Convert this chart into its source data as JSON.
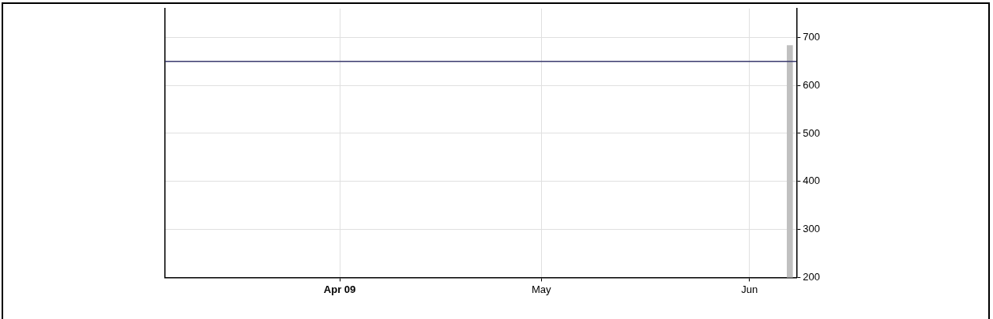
{
  "chart_data": {
    "type": "line",
    "xlim": [
      "2009-03-06",
      "2009-06-08"
    ],
    "xticks": [
      {
        "value": "2009-04-01",
        "label": "Apr 09"
      },
      {
        "value": "2009-05-01",
        "label": "May"
      },
      {
        "value": "2009-06-01",
        "label": "Jun"
      }
    ],
    "ylim": [
      200,
      760
    ],
    "yticks": [
      200,
      300,
      400,
      500,
      600,
      700
    ],
    "grid": true,
    "series": [
      {
        "color": "#3b3b6e",
        "x": [
          "2009-03-06",
          "2009-06-08"
        ],
        "values": [
          650,
          650
        ]
      },
      {
        "type": "bar",
        "color": "#c0c0c0",
        "x": [
          "2009-06-07"
        ],
        "values": [
          683
        ]
      }
    ]
  }
}
